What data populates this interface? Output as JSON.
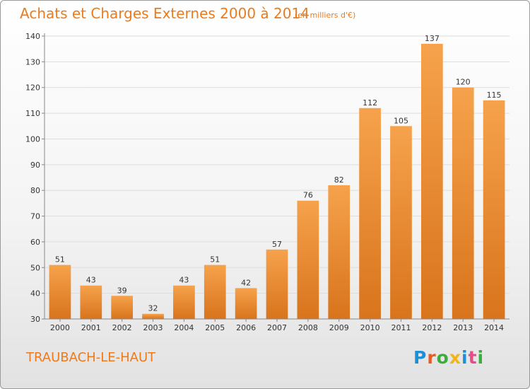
{
  "title": "Achats et Charges Externes 2000 à 2014",
  "subtitle": "(en milliers d'€)",
  "place": "TRAUBACH-LE-HAUT",
  "logo": {
    "text": "Proxiti",
    "colors": [
      "#1b8fd8",
      "#e85b22",
      "#3aae3a",
      "#f2b31c",
      "#1b8fd8",
      "#e84a8a",
      "#3aae3a"
    ]
  },
  "colors": {
    "accent": "#ea7b1e",
    "bar_light": "#f6a24c",
    "bar_dark": "#d8741c",
    "grid": "#dddddd",
    "axis": "#888888"
  },
  "chart_data": {
    "type": "bar",
    "title": "Achats et Charges Externes 2000 à 2014",
    "subtitle": "(en milliers d'€)",
    "xlabel": "",
    "ylabel": "",
    "ylim": [
      30,
      140
    ],
    "yticks": [
      30,
      40,
      50,
      60,
      70,
      80,
      90,
      100,
      110,
      120,
      130,
      140
    ],
    "grid": true,
    "categories": [
      "2000",
      "2001",
      "2002",
      "2003",
      "2004",
      "2005",
      "2006",
      "2007",
      "2008",
      "2009",
      "2010",
      "2011",
      "2012",
      "2013",
      "2014"
    ],
    "values": [
      51,
      43,
      39,
      32,
      43,
      51,
      42,
      57,
      76,
      82,
      112,
      105,
      137,
      120,
      115
    ]
  }
}
